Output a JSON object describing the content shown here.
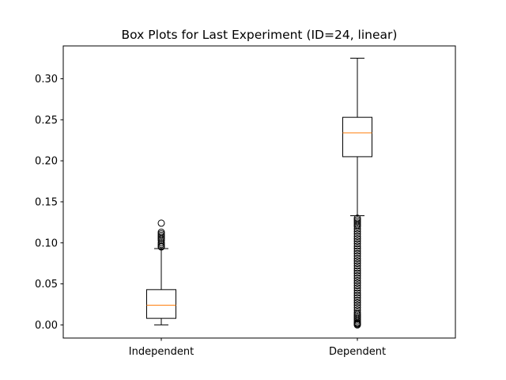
{
  "chart_data": {
    "type": "box",
    "title": "Box Plots for Last Experiment (ID=24, linear)",
    "xlabel": "",
    "ylabel": "",
    "categories": [
      "Independent",
      "Dependent"
    ],
    "ylim": [
      -0.016,
      0.34
    ],
    "yticks": [
      0.0,
      0.05,
      0.1,
      0.15,
      0.2,
      0.25,
      0.3
    ],
    "ytick_labels": [
      "0.00",
      "0.05",
      "0.10",
      "0.15",
      "0.20",
      "0.25",
      "0.30"
    ],
    "grid": false,
    "box_color": "#000000",
    "median_color": "#ff7f0e",
    "boxes": [
      {
        "name": "Independent",
        "whisker_low": 0.0,
        "q1": 0.008,
        "median": 0.024,
        "q3": 0.043,
        "whisker_high": 0.093,
        "outliers": [
          0.095,
          0.096,
          0.098,
          0.1,
          0.103,
          0.105,
          0.107,
          0.109,
          0.111,
          0.113,
          0.124
        ]
      },
      {
        "name": "Dependent",
        "whisker_low": 0.133,
        "q1": 0.205,
        "median": 0.234,
        "q3": 0.253,
        "whisker_high": 0.325,
        "outliers": [
          0.0,
          0.001,
          0.002,
          0.003,
          0.005,
          0.007,
          0.009,
          0.011,
          0.013,
          0.015,
          0.018,
          0.021,
          0.024,
          0.027,
          0.03,
          0.033,
          0.036,
          0.039,
          0.042,
          0.045,
          0.048,
          0.051,
          0.054,
          0.057,
          0.06,
          0.063,
          0.066,
          0.069,
          0.072,
          0.075,
          0.078,
          0.081,
          0.084,
          0.087,
          0.09,
          0.093,
          0.096,
          0.099,
          0.102,
          0.105,
          0.108,
          0.111,
          0.114,
          0.117,
          0.12,
          0.122,
          0.124,
          0.126,
          0.128,
          0.13
        ]
      }
    ]
  }
}
